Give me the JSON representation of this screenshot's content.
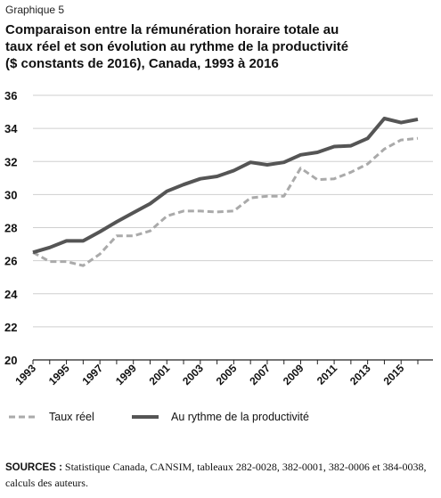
{
  "header": {
    "label": "Graphique 5",
    "title_lines": [
      "Comparaison entre la rémunération horaire totale au",
      "taux réel et son évolution au rythme de la productivité",
      "($ constants de 2016), Canada, 1993 à 2016"
    ]
  },
  "chart_data": {
    "type": "line",
    "x": [
      1993,
      1994,
      1995,
      1996,
      1997,
      1998,
      1999,
      2000,
      2001,
      2002,
      2003,
      2004,
      2005,
      2006,
      2007,
      2008,
      2009,
      2010,
      2011,
      2012,
      2013,
      2014,
      2015,
      2016
    ],
    "x_tick_labels": [
      "1993",
      "1995",
      "1997",
      "1999",
      "2001",
      "2003",
      "2005",
      "2007",
      "2009",
      "2011",
      "2013",
      "2015"
    ],
    "y_tick_labels": [
      "20",
      "22",
      "24",
      "26",
      "28",
      "30",
      "32",
      "34",
      "36"
    ],
    "ylim": [
      20,
      36
    ],
    "grid": true,
    "legend_position": "bottom-left",
    "series": [
      {
        "name": "Taux réel",
        "style": "dashed",
        "color": "#aaaaaa",
        "values": [
          26.5,
          25.95,
          25.95,
          25.7,
          26.4,
          27.5,
          27.5,
          27.8,
          28.7,
          29.0,
          29.0,
          28.95,
          29.0,
          29.8,
          29.9,
          29.9,
          31.6,
          30.9,
          30.95,
          31.35,
          31.85,
          32.75,
          33.3,
          33.4
        ]
      },
      {
        "name": "Au rythme de la productivité",
        "style": "solid",
        "color": "#555555",
        "values": [
          26.5,
          26.8,
          27.2,
          27.2,
          27.75,
          28.35,
          28.9,
          29.45,
          30.2,
          30.6,
          30.95,
          31.1,
          31.45,
          31.95,
          31.8,
          31.95,
          32.4,
          32.55,
          32.9,
          32.95,
          33.4,
          34.6,
          34.35,
          34.55
        ]
      }
    ]
  },
  "footer": {
    "source_head": "SOURCES :",
    "source_text": " Statistique Canada, CANSIM, tableaux 282-0028, 382-0001, 382-0006 et 384-0038, calculs des auteurs."
  }
}
